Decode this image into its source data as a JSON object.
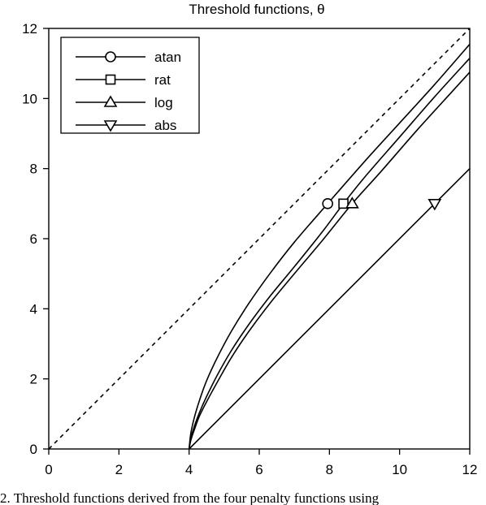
{
  "chart_data": {
    "type": "line",
    "title": "Threshold functions, θ",
    "xlabel": "",
    "ylabel": "",
    "xlim": [
      0,
      12
    ],
    "ylim": [
      0,
      12
    ],
    "xticks": [
      0,
      2,
      4,
      6,
      8,
      10,
      12
    ],
    "yticks": [
      0,
      2,
      4,
      6,
      8,
      10,
      12
    ],
    "grid": false,
    "legend_position": "top-left",
    "reference_line": {
      "style": "dashed",
      "x": [
        0,
        12
      ],
      "y": [
        0,
        12
      ]
    },
    "series": [
      {
        "name": "atan",
        "marker": "circle",
        "x": [
          4,
          4.05,
          4.15,
          4.3,
          4.5,
          4.8,
          5.2,
          5.7,
          6.3,
          7.0,
          7.95,
          9.0,
          10.0,
          11.0,
          12.0
        ],
        "y": [
          0,
          0.45,
          0.9,
          1.4,
          1.95,
          2.6,
          3.35,
          4.15,
          5.0,
          5.9,
          7.0,
          8.2,
          9.3,
          10.4,
          11.55
        ],
        "marker_points": [
          {
            "x": 7.95,
            "y": 7.0
          }
        ]
      },
      {
        "name": "rat",
        "marker": "square",
        "x": [
          4,
          4.05,
          4.15,
          4.3,
          4.5,
          4.8,
          5.2,
          5.7,
          6.3,
          7.0,
          7.8,
          8.4,
          9.0,
          10.0,
          11.0,
          12.0
        ],
        "y": [
          0,
          0.3,
          0.65,
          1.05,
          1.5,
          2.1,
          2.8,
          3.55,
          4.35,
          5.2,
          6.2,
          7.0,
          7.75,
          8.9,
          10.05,
          11.15
        ],
        "marker_points": [
          {
            "x": 8.4,
            "y": 7.0
          }
        ]
      },
      {
        "name": "log",
        "marker": "triangle-up",
        "x": [
          4,
          4.05,
          4.15,
          4.3,
          4.5,
          4.8,
          5.2,
          5.7,
          6.3,
          7.0,
          7.8,
          8.65,
          9.5,
          10.5,
          11.5,
          12.0
        ],
        "y": [
          0,
          0.25,
          0.55,
          0.95,
          1.35,
          1.9,
          2.6,
          3.35,
          4.15,
          5.0,
          5.95,
          7.0,
          7.95,
          9.1,
          10.2,
          10.75
        ],
        "marker_points": [
          {
            "x": 8.65,
            "y": 7.0
          }
        ]
      },
      {
        "name": "abs",
        "marker": "triangle-down",
        "x": [
          4,
          12
        ],
        "y": [
          0,
          8
        ],
        "marker_points": [
          {
            "x": 11.0,
            "y": 7.0
          }
        ]
      }
    ]
  },
  "caption": "2. Threshold functions derived from the four penalty functions using"
}
